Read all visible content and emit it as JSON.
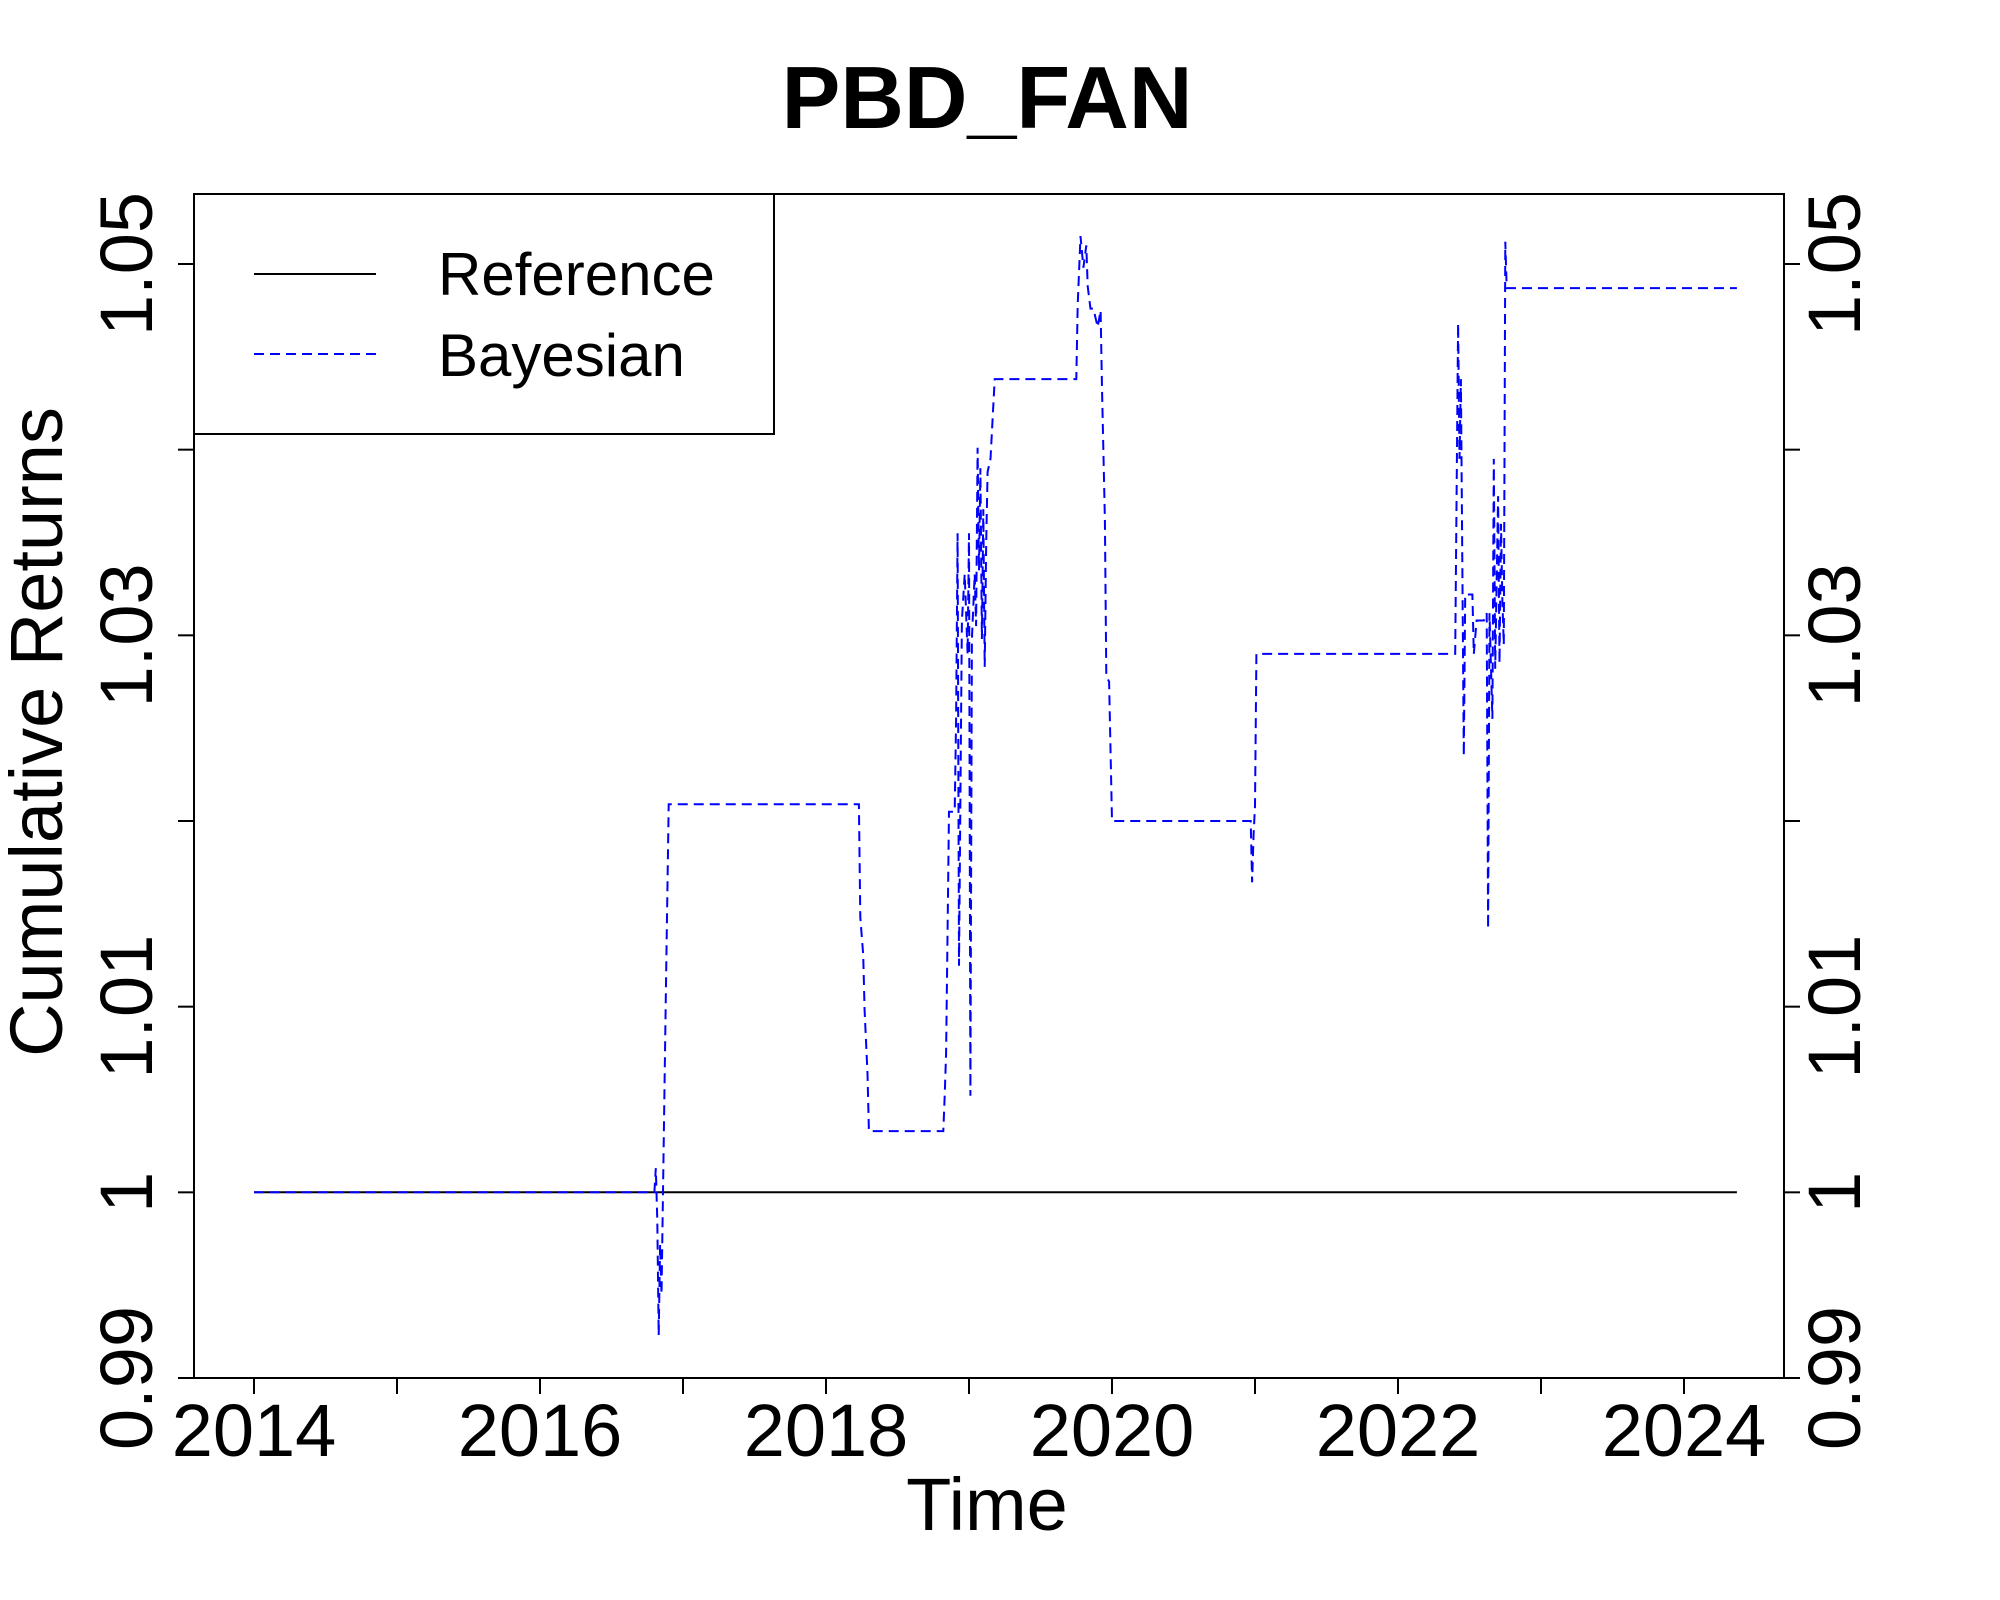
{
  "chart_data": {
    "type": "line",
    "title": "PBD_FAN",
    "xlabel": "Time",
    "ylabel": "Cumulative Returns",
    "xlim": [
      2014,
      2024.6
    ],
    "ylim": [
      0.99,
      1.053
    ],
    "xticks": [
      2014,
      2015,
      2016,
      2017,
      2018,
      2019,
      2020,
      2021,
      2022,
      2023,
      2024
    ],
    "xtick_labels": [
      "2014",
      "2016",
      "2018",
      "2020",
      "2022",
      "2024"
    ],
    "xtick_label_values": [
      2014,
      2016,
      2018,
      2020,
      2022,
      2024
    ],
    "yticks": [
      0.99,
      1.0,
      1.01,
      1.02,
      1.03,
      1.04,
      1.05
    ],
    "ytick_labels": [
      "0.99",
      "1",
      "1.01",
      "1.03",
      "1.05"
    ],
    "ytick_label_values": [
      0.99,
      1.0,
      1.01,
      1.03,
      1.05
    ],
    "grid": false,
    "right_axis": true,
    "legend": {
      "position": "top-left",
      "entries": [
        {
          "name": "Reference",
          "color": "#000000",
          "style": "solid"
        },
        {
          "name": "Bayesian",
          "color": "#0000ff",
          "style": "dashed"
        }
      ]
    },
    "series": [
      {
        "name": "Reference",
        "color": "#000000",
        "style": "solid",
        "points": [
          [
            2014.0,
            1.0
          ],
          [
            2024.37,
            1.0
          ]
        ]
      },
      {
        "name": "Bayesian",
        "color": "#0000ff",
        "style": "dashed",
        "points": [
          [
            2014.0,
            1.0
          ],
          [
            2016.8,
            1.0
          ],
          [
            2016.81,
            1.0013
          ],
          [
            2016.82,
            0.9985
          ],
          [
            2016.83,
            0.9923
          ],
          [
            2016.84,
            0.9972
          ],
          [
            2016.85,
            0.9945
          ],
          [
            2016.86,
            1.0
          ],
          [
            2016.88,
            1.0105
          ],
          [
            2016.9,
            1.0209
          ],
          [
            2018.23,
            1.0209
          ],
          [
            2018.24,
            1.0148
          ],
          [
            2018.26,
            1.0128
          ],
          [
            2018.27,
            1.0098
          ],
          [
            2018.29,
            1.0064
          ],
          [
            2018.3,
            1.0033
          ],
          [
            2018.82,
            1.0033
          ],
          [
            2018.83,
            1.0052
          ],
          [
            2018.84,
            1.0075
          ],
          [
            2018.86,
            1.0205
          ],
          [
            2018.9,
            1.0205
          ],
          [
            2018.91,
            1.0255
          ],
          [
            2018.92,
            1.0355
          ],
          [
            2018.93,
            1.0122
          ],
          [
            2018.95,
            1.0308
          ],
          [
            2018.97,
            1.0333
          ],
          [
            2018.99,
            1.029
          ],
          [
            2019.0,
            1.0355
          ],
          [
            2019.01,
            1.0052
          ],
          [
            2019.02,
            1.0298
          ],
          [
            2019.04,
            1.0333
          ],
          [
            2019.05,
            1.0305
          ],
          [
            2019.06,
            1.0401
          ],
          [
            2019.07,
            1.0335
          ],
          [
            2019.08,
            1.039
          ],
          [
            2019.09,
            1.0298
          ],
          [
            2019.1,
            1.0368
          ],
          [
            2019.11,
            1.0283
          ],
          [
            2019.12,
            1.035
          ],
          [
            2019.13,
            1.0388
          ],
          [
            2019.15,
            1.0395
          ],
          [
            2019.18,
            1.0438
          ],
          [
            2019.75,
            1.0438
          ],
          [
            2019.76,
            1.0478
          ],
          [
            2019.78,
            1.0515
          ],
          [
            2019.8,
            1.0498
          ],
          [
            2019.82,
            1.051
          ],
          [
            2019.83,
            1.0488
          ],
          [
            2019.85,
            1.0476
          ],
          [
            2019.87,
            1.0476
          ],
          [
            2019.9,
            1.0466
          ],
          [
            2019.92,
            1.0475
          ],
          [
            2019.93,
            1.0433
          ],
          [
            2019.95,
            1.0362
          ],
          [
            2019.96,
            1.0278
          ],
          [
            2019.98,
            1.0275
          ],
          [
            2020.0,
            1.02
          ],
          [
            2020.97,
            1.02
          ],
          [
            2020.98,
            1.0167
          ],
          [
            2020.99,
            1.0193
          ],
          [
            2021.0,
            1.0208
          ],
          [
            2021.01,
            1.029
          ],
          [
            2022.4,
            1.029
          ],
          [
            2022.42,
            1.0468
          ],
          [
            2022.43,
            1.0395
          ],
          [
            2022.44,
            1.0438
          ],
          [
            2022.46,
            1.0235
          ],
          [
            2022.47,
            1.0322
          ],
          [
            2022.52,
            1.0322
          ],
          [
            2022.53,
            1.029
          ],
          [
            2022.55,
            1.0308
          ],
          [
            2022.6,
            1.0308
          ],
          [
            2022.62,
            1.0312
          ],
          [
            2022.63,
            1.0142
          ],
          [
            2022.64,
            1.0312
          ],
          [
            2022.66,
            1.0255
          ],
          [
            2022.67,
            1.0395
          ],
          [
            2022.68,
            1.0282
          ],
          [
            2022.7,
            1.0375
          ],
          [
            2022.71,
            1.0285
          ],
          [
            2022.72,
            1.036
          ],
          [
            2022.73,
            1.0318
          ],
          [
            2022.74,
            1.0295
          ],
          [
            2022.75,
            1.0512
          ],
          [
            2022.76,
            1.0487
          ],
          [
            2024.37,
            1.0487
          ]
        ]
      }
    ]
  }
}
